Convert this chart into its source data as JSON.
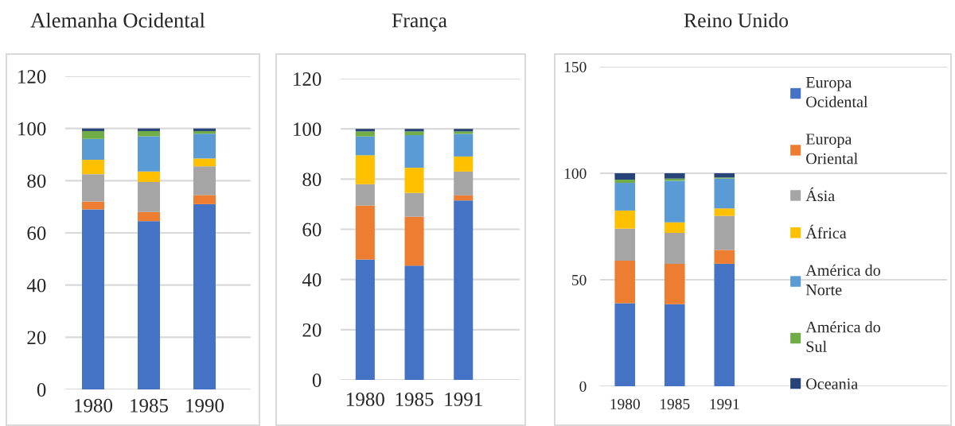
{
  "chart_data": [
    {
      "type": "bar",
      "title": "Alemanha Ocidental",
      "categories": [
        "1980",
        "1985",
        "1990"
      ],
      "stacked": true,
      "ylim": [
        0,
        120
      ],
      "yticks": [
        0,
        20,
        40,
        60,
        80,
        100,
        120
      ],
      "grid": "y",
      "legend": false,
      "series": [
        {
          "color": "#4472c4",
          "values": [
            69,
            64.5,
            71
          ]
        },
        {
          "color": "#ed7d31",
          "values": [
            3,
            3.5,
            3.5
          ]
        },
        {
          "color": "#a5a5a5",
          "values": [
            10.5,
            11.5,
            11
          ]
        },
        {
          "color": "#ffc000",
          "values": [
            5.5,
            4,
            3
          ]
        },
        {
          "color": "#5b9bd5",
          "values": [
            8,
            13.5,
            9.5
          ]
        },
        {
          "color": "#70ad47",
          "values": [
            3,
            2,
            1
          ]
        },
        {
          "color": "#264478",
          "values": [
            1,
            1,
            1
          ]
        }
      ]
    },
    {
      "type": "bar",
      "title": "França",
      "categories": [
        "1980",
        "1985",
        "1991"
      ],
      "stacked": true,
      "ylim": [
        0,
        120
      ],
      "yticks": [
        0,
        20,
        40,
        60,
        80,
        100,
        120
      ],
      "grid": "y",
      "legend": false,
      "series": [
        {
          "color": "#4472c4",
          "values": [
            48,
            45.5,
            71.5
          ]
        },
        {
          "color": "#ed7d31",
          "values": [
            21.5,
            19.5,
            2
          ]
        },
        {
          "color": "#a5a5a5",
          "values": [
            8.5,
            9.5,
            9.5
          ]
        },
        {
          "color": "#ffc000",
          "values": [
            11.5,
            10,
            6
          ]
        },
        {
          "color": "#5b9bd5",
          "values": [
            7.5,
            13,
            9
          ]
        },
        {
          "color": "#70ad47",
          "values": [
            2,
            1.5,
            1
          ]
        },
        {
          "color": "#264478",
          "values": [
            1,
            1,
            1
          ]
        }
      ]
    },
    {
      "type": "bar",
      "title": "Reino Unido",
      "categories": [
        "1980",
        "1985",
        "1991"
      ],
      "stacked": true,
      "ylim": [
        0,
        150
      ],
      "yticks": [
        0,
        50,
        100,
        150
      ],
      "grid": "y",
      "legend": "right",
      "series": [
        {
          "name": "Europa Ocidental",
          "color": "#4472c4",
          "values": [
            39,
            38.5,
            57.5
          ]
        },
        {
          "name": "Europa Oriental",
          "color": "#ed7d31",
          "values": [
            20,
            19,
            6.5
          ]
        },
        {
          "name": "Ásia",
          "color": "#a5a5a5",
          "values": [
            15,
            14.5,
            16
          ]
        },
        {
          "name": "África",
          "color": "#ffc000",
          "values": [
            8.5,
            5,
            3.5
          ]
        },
        {
          "name": "América do Norte",
          "color": "#5b9bd5",
          "values": [
            13,
            19.5,
            14
          ]
        },
        {
          "name": "América do Sul",
          "color": "#70ad47",
          "values": [
            1.5,
            1,
            0.5
          ]
        },
        {
          "name": "Oceania",
          "color": "#264478",
          "values": [
            3,
            2.5,
            2
          ]
        }
      ]
    }
  ]
}
